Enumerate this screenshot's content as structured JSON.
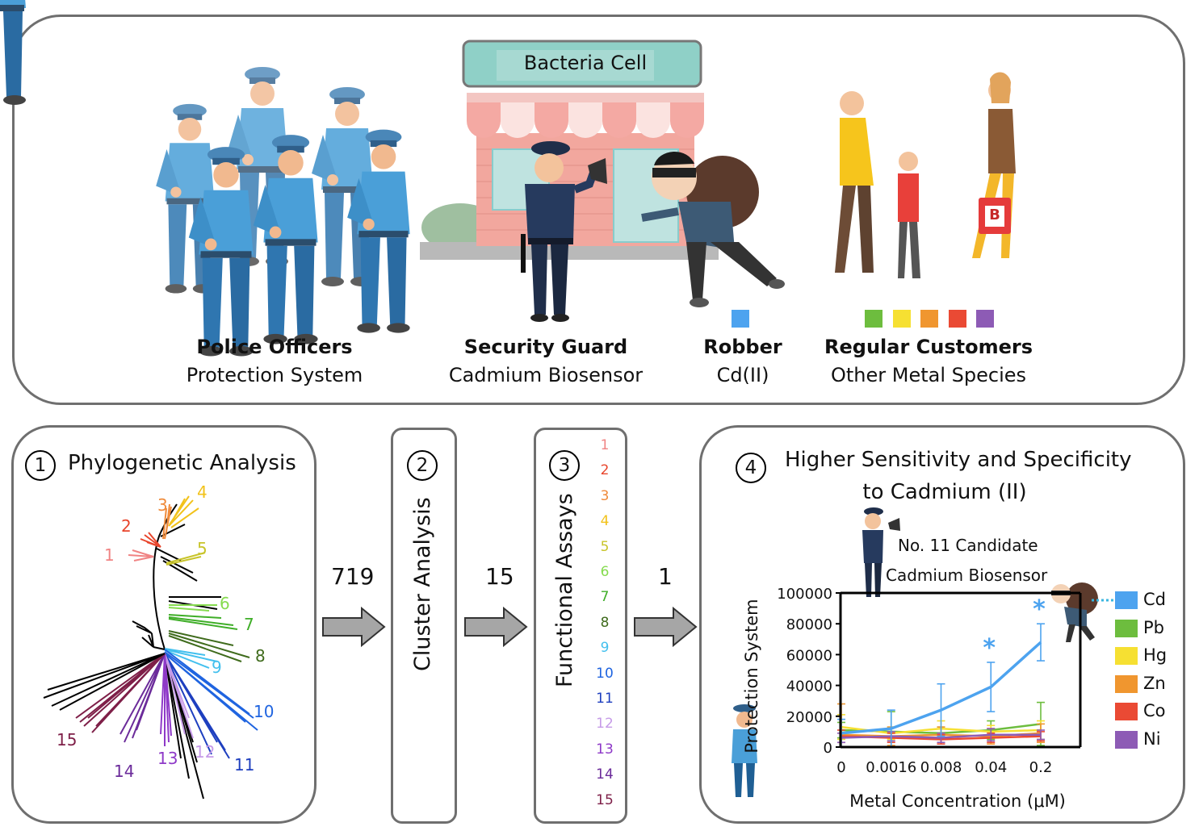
{
  "top": {
    "store_sign": "Bacteria Cell",
    "police": {
      "title": "Police Officers",
      "subtitle": "Protection System"
    },
    "guard": {
      "title": "Security Guard",
      "subtitle": "Cadmium Biosensor"
    },
    "robber": {
      "title": "Robber",
      "subtitle": "Cd(II)"
    },
    "customers": {
      "title": "Regular Customers",
      "subtitle": "Other Metal Species"
    },
    "bag_letter": "B",
    "colors": {
      "robber": "#4da3ef",
      "customers": [
        "#6dbd3e",
        "#f6e032",
        "#f0962f",
        "#ea4a34",
        "#8d5bb5"
      ]
    }
  },
  "step1": {
    "num": "1",
    "title": "Phylogenetic Analysis",
    "clades": [
      "1",
      "2",
      "3",
      "4",
      "5",
      "6",
      "7",
      "8",
      "9",
      "10",
      "11",
      "12",
      "13",
      "14",
      "15"
    ]
  },
  "flow1": "719",
  "step2": {
    "num": "2",
    "title": "Cluster Analysis"
  },
  "flow2": "15",
  "step3": {
    "num": "3",
    "title": "Functional Assays",
    "items": [
      "1",
      "2",
      "3",
      "4",
      "5",
      "6",
      "7",
      "8",
      "9",
      "10",
      "11",
      "12",
      "13",
      "14",
      "15"
    ],
    "colors": [
      "#f08484",
      "#e8452c",
      "#ef8a3a",
      "#f2c21a",
      "#c8c42a",
      "#86db4f",
      "#3fae28",
      "#3f6b1c",
      "#43c0ee",
      "#1f64e0",
      "#1e3fbf",
      "#c69be8",
      "#8e39c8",
      "#6b2b9a",
      "#7e1f48"
    ]
  },
  "flow3": "1",
  "step4": {
    "num": "4",
    "title_line1": "Higher Sensitivity and Specificity",
    "title_line2": "to Cadmium (II)",
    "candidate_line1": "No. 11 Candidate",
    "candidate_line2": "Cadmium Biosensor"
  },
  "chart_data": {
    "type": "line",
    "ylabel": "Protection System",
    "xlabel": "Metal Concentration (μM)",
    "categories": [
      "0",
      "0.0016",
      "0.008",
      "0.04",
      "0.2"
    ],
    "yticks": [
      "0",
      "20000",
      "40000",
      "60000",
      "80000",
      "100000"
    ],
    "ylim": [
      0,
      100000
    ],
    "series": [
      {
        "name": "Cd",
        "color": "#4da3ef",
        "values": [
          9000,
          12000,
          24000,
          39000,
          68000
        ],
        "err": [
          9000,
          12000,
          17000,
          16000,
          12000
        ]
      },
      {
        "name": "Pb",
        "color": "#6dbd3e",
        "values": [
          11000,
          10000,
          9000,
          11000,
          15000
        ],
        "err": [
          5000,
          13000,
          4000,
          6000,
          14000
        ]
      },
      {
        "name": "Hg",
        "color": "#f6e032",
        "values": [
          13000,
          9000,
          12000,
          10000,
          11000
        ],
        "err": [
          8000,
          4000,
          5000,
          4000,
          6000
        ]
      },
      {
        "name": "Zn",
        "color": "#f0962f",
        "values": [
          8000,
          7000,
          8000,
          7000,
          9000
        ],
        "err": [
          20000,
          6000,
          5000,
          5000,
          6000
        ]
      },
      {
        "name": "Co",
        "color": "#ea4a34",
        "values": [
          7000,
          6000,
          5000,
          6000,
          7000
        ],
        "err": [
          4000,
          3000,
          3000,
          3000,
          3000
        ]
      },
      {
        "name": "Ni",
        "color": "#8d5bb5",
        "values": [
          6000,
          7000,
          6000,
          8000,
          8000
        ],
        "err": [
          3000,
          3000,
          3000,
          4000,
          3000
        ]
      }
    ],
    "annotations": [
      "*",
      "*"
    ]
  }
}
